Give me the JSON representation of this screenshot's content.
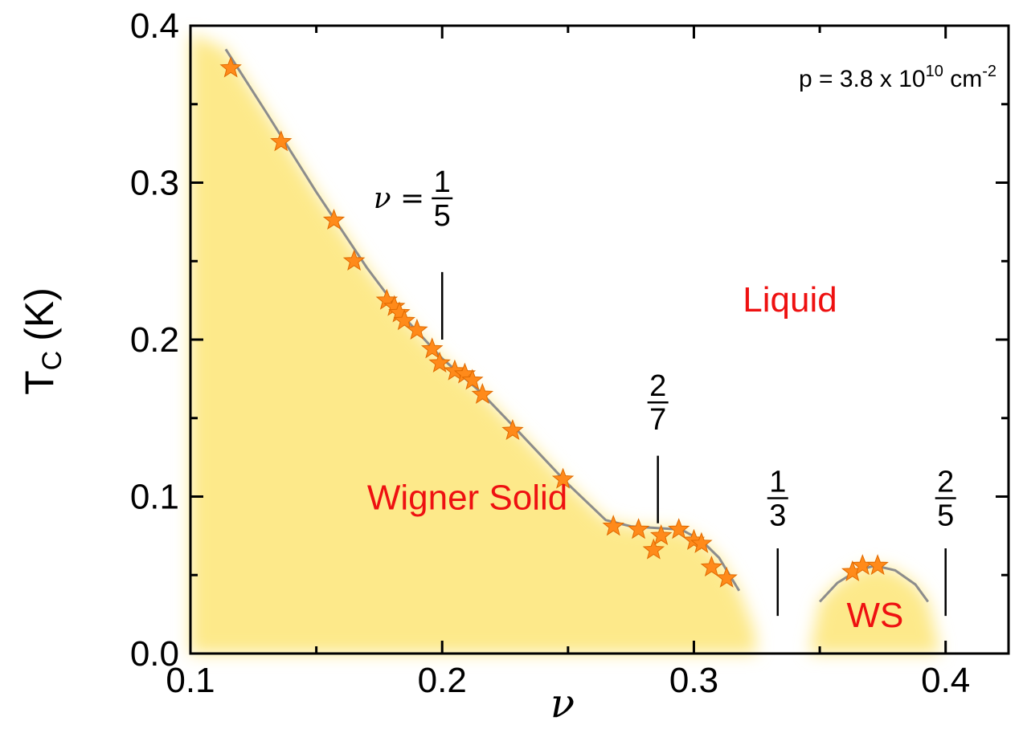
{
  "chart_data": {
    "type": "scatter",
    "title": "",
    "xlabel": "ν",
    "ylabel": "T_C (K)",
    "ylabel_main": "T",
    "ylabel_sub": "C",
    "ylabel_unit": "(K)",
    "xlim": [
      0.1,
      0.425
    ],
    "ylim": [
      0.0,
      0.4
    ],
    "xticks": [
      0.1,
      0.2,
      0.3,
      0.4
    ],
    "yticks": [
      0.0,
      0.1,
      0.2,
      0.3,
      0.4
    ],
    "xtick_labels": [
      "0.1",
      "0.2",
      "0.3",
      "0.4"
    ],
    "ytick_labels": [
      "0.0",
      "0.1",
      "0.2",
      "0.3",
      "0.4"
    ],
    "grid": false,
    "colors": {
      "marker": "#ff8a1a",
      "region_fill": "#fde98a",
      "fit_line": "#8c8c8c",
      "region_label": "#ee1111"
    },
    "series": [
      {
        "points": [
          [
            0.116,
            0.373
          ],
          [
            0.136,
            0.326
          ],
          [
            0.157,
            0.276
          ],
          [
            0.165,
            0.25
          ],
          [
            0.178,
            0.225
          ],
          [
            0.181,
            0.221
          ],
          [
            0.183,
            0.217
          ],
          [
            0.185,
            0.212
          ],
          [
            0.19,
            0.206
          ],
          [
            0.196,
            0.194
          ],
          [
            0.199,
            0.185
          ],
          [
            0.205,
            0.18
          ],
          [
            0.209,
            0.178
          ],
          [
            0.212,
            0.174
          ],
          [
            0.216,
            0.165
          ],
          [
            0.228,
            0.142
          ],
          [
            0.248,
            0.111
          ],
          [
            0.268,
            0.081
          ],
          [
            0.278,
            0.079
          ],
          [
            0.284,
            0.066
          ],
          [
            0.287,
            0.075
          ],
          [
            0.294,
            0.079
          ],
          [
            0.3,
            0.072
          ],
          [
            0.303,
            0.07
          ],
          [
            0.307,
            0.055
          ],
          [
            0.313,
            0.048
          ],
          [
            0.363,
            0.052
          ],
          [
            0.367,
            0.056
          ],
          [
            0.373,
            0.056
          ]
        ]
      }
    ],
    "fit_curves": [
      [
        [
          0.114,
          0.385
        ],
        [
          0.13,
          0.345
        ],
        [
          0.15,
          0.294
        ],
        [
          0.17,
          0.246
        ],
        [
          0.185,
          0.214
        ],
        [
          0.2,
          0.188
        ],
        [
          0.215,
          0.167
        ],
        [
          0.23,
          0.142
        ],
        [
          0.25,
          0.108
        ],
        [
          0.265,
          0.085
        ],
        [
          0.275,
          0.081
        ],
        [
          0.285,
          0.08
        ],
        [
          0.295,
          0.079
        ],
        [
          0.303,
          0.072
        ],
        [
          0.31,
          0.061
        ],
        [
          0.318,
          0.04
        ]
      ],
      [
        [
          0.35,
          0.033
        ],
        [
          0.357,
          0.045
        ],
        [
          0.365,
          0.053
        ],
        [
          0.372,
          0.056
        ],
        [
          0.38,
          0.053
        ],
        [
          0.388,
          0.044
        ],
        [
          0.393,
          0.033
        ]
      ]
    ],
    "regions": [
      {
        "label": "Wigner Solid",
        "label_pos": [
          0.21,
          0.1
        ],
        "boundary": [
          [
            0.1,
            0.0
          ],
          [
            0.1,
            0.395
          ],
          [
            0.114,
            0.385
          ],
          [
            0.13,
            0.345
          ],
          [
            0.15,
            0.294
          ],
          [
            0.17,
            0.246
          ],
          [
            0.185,
            0.214
          ],
          [
            0.2,
            0.188
          ],
          [
            0.215,
            0.167
          ],
          [
            0.23,
            0.142
          ],
          [
            0.25,
            0.108
          ],
          [
            0.265,
            0.085
          ],
          [
            0.275,
            0.081
          ],
          [
            0.285,
            0.08
          ],
          [
            0.295,
            0.079
          ],
          [
            0.303,
            0.072
          ],
          [
            0.31,
            0.061
          ],
          [
            0.318,
            0.04
          ],
          [
            0.324,
            0.015
          ],
          [
            0.325,
            0.0
          ]
        ]
      },
      {
        "label": "WS",
        "label_pos": [
          0.372,
          0.025
        ],
        "boundary": [
          [
            0.346,
            0.0
          ],
          [
            0.35,
            0.033
          ],
          [
            0.357,
            0.045
          ],
          [
            0.365,
            0.053
          ],
          [
            0.372,
            0.056
          ],
          [
            0.38,
            0.053
          ],
          [
            0.388,
            0.044
          ],
          [
            0.393,
            0.033
          ],
          [
            0.398,
            0.0
          ]
        ]
      }
    ],
    "region_labels": {
      "liquid": "Liquid",
      "wigner_solid": "Wigner Solid",
      "ws": "WS"
    },
    "annotations": {
      "density": {
        "prefix": "p = 3.8 x 10",
        "exponent": "10",
        "unit": " cm",
        "unit_exponent": "-2"
      },
      "fractions": [
        {
          "nu": 0.2,
          "prefix": "ν =",
          "numerator": "1",
          "denominator": "5",
          "line_from": 0.2,
          "line_to": 0.243,
          "label_y": 0.29
        },
        {
          "nu": 0.2857,
          "prefix": "",
          "numerator": "2",
          "denominator": "7",
          "line_from": 0.083,
          "line_to": 0.126,
          "label_y": 0.16
        },
        {
          "nu": 0.3333,
          "prefix": "",
          "numerator": "1",
          "denominator": "3",
          "line_from": 0.024,
          "line_to": 0.067,
          "label_y": 0.099
        },
        {
          "nu": 0.4,
          "prefix": "",
          "numerator": "2",
          "denominator": "5",
          "line_from": 0.024,
          "line_to": 0.067,
          "label_y": 0.099
        }
      ]
    }
  }
}
